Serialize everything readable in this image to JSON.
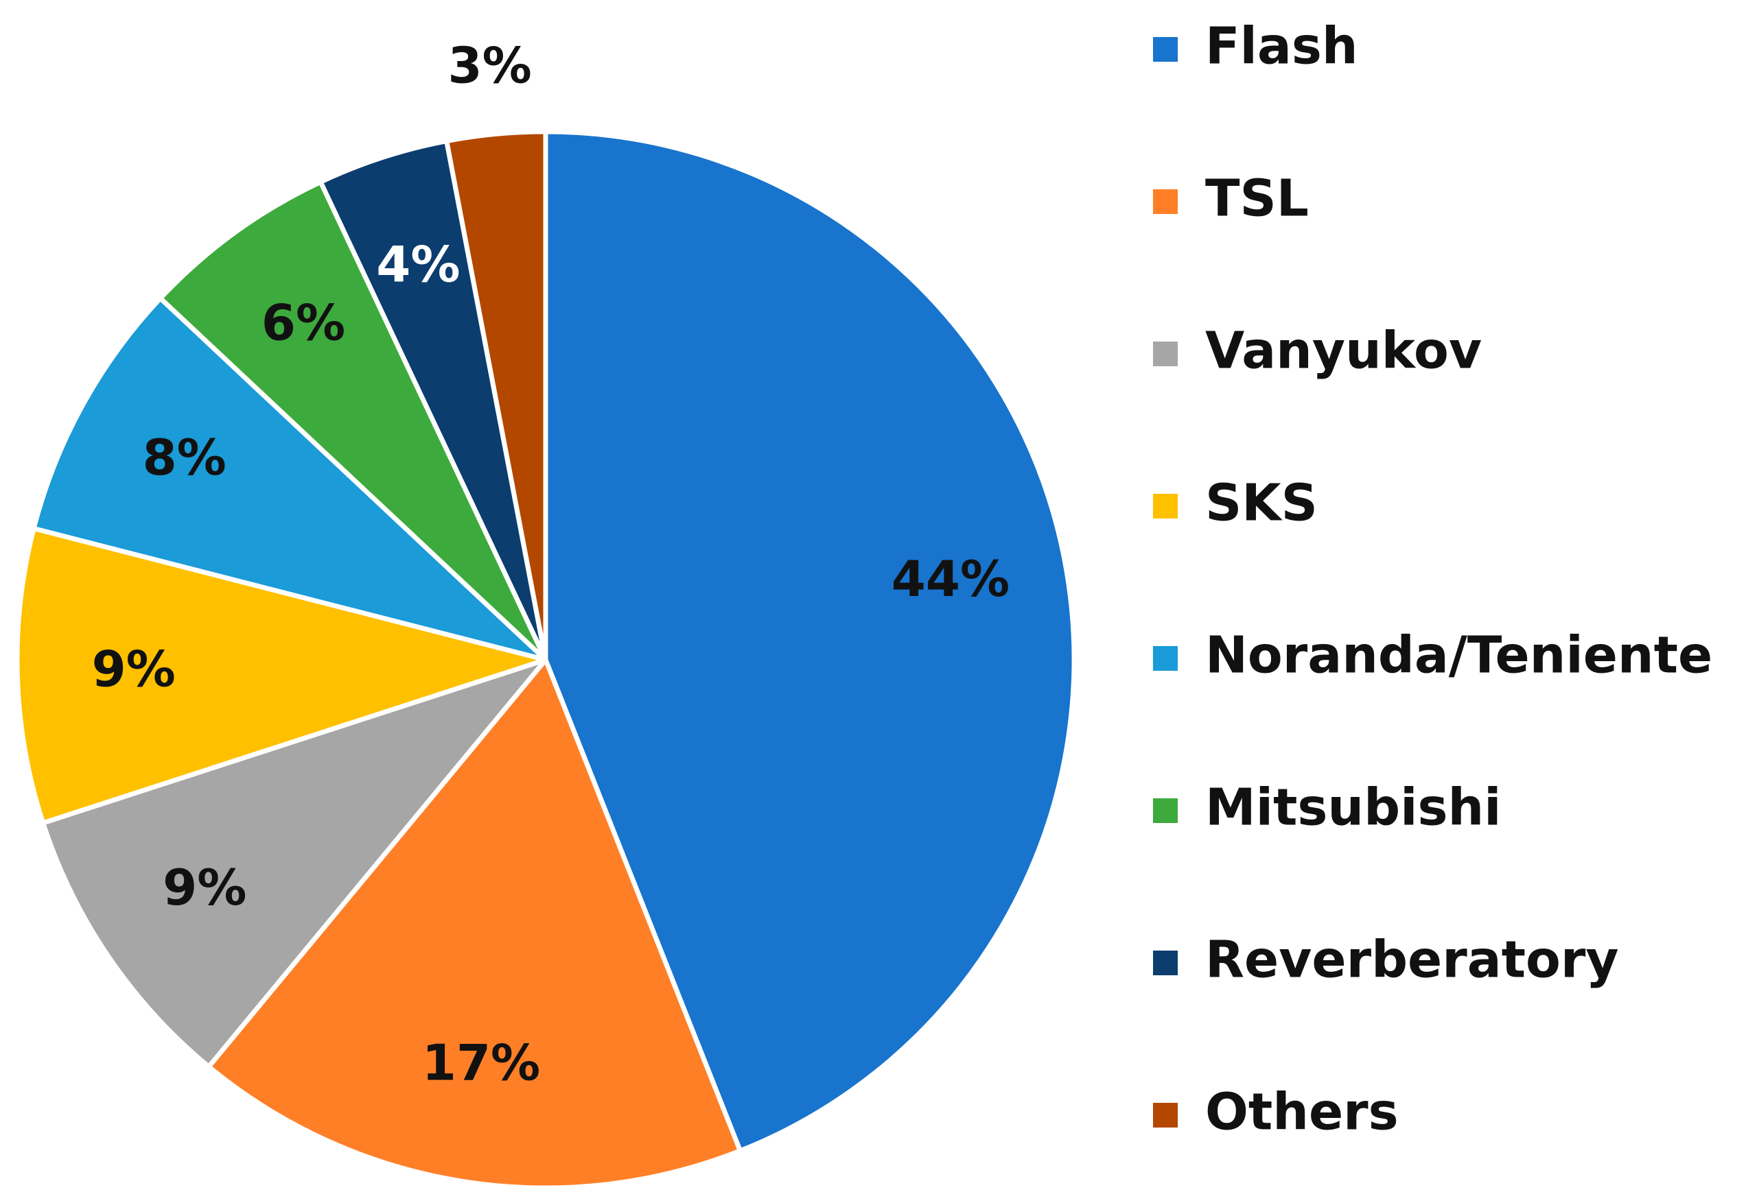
{
  "chart_data": {
    "type": "pie",
    "categories": [
      "Flash",
      "TSL",
      "Vanyukov",
      "SKS",
      "Noranda/Teniente",
      "Mitsubishi",
      "Reverberatory",
      "Others"
    ],
    "values": [
      44,
      17,
      9,
      9,
      8,
      6,
      4,
      3
    ],
    "data_labels": [
      "44%",
      "17%",
      "9%",
      "9%",
      "8%",
      "6%",
      "4%",
      "3%"
    ],
    "colors": [
      "#1874CD",
      "#FF7F27",
      "#A6A6A6",
      "#FFC000",
      "#1B9BD7",
      "#3DAA3D",
      "#0B3D6E",
      "#B34700"
    ],
    "label_colors": [
      "#111111",
      "#111111",
      "#111111",
      "#111111",
      "#111111",
      "#111111",
      "#ffffff",
      "#111111"
    ],
    "title": "",
    "legend_position": "right"
  }
}
